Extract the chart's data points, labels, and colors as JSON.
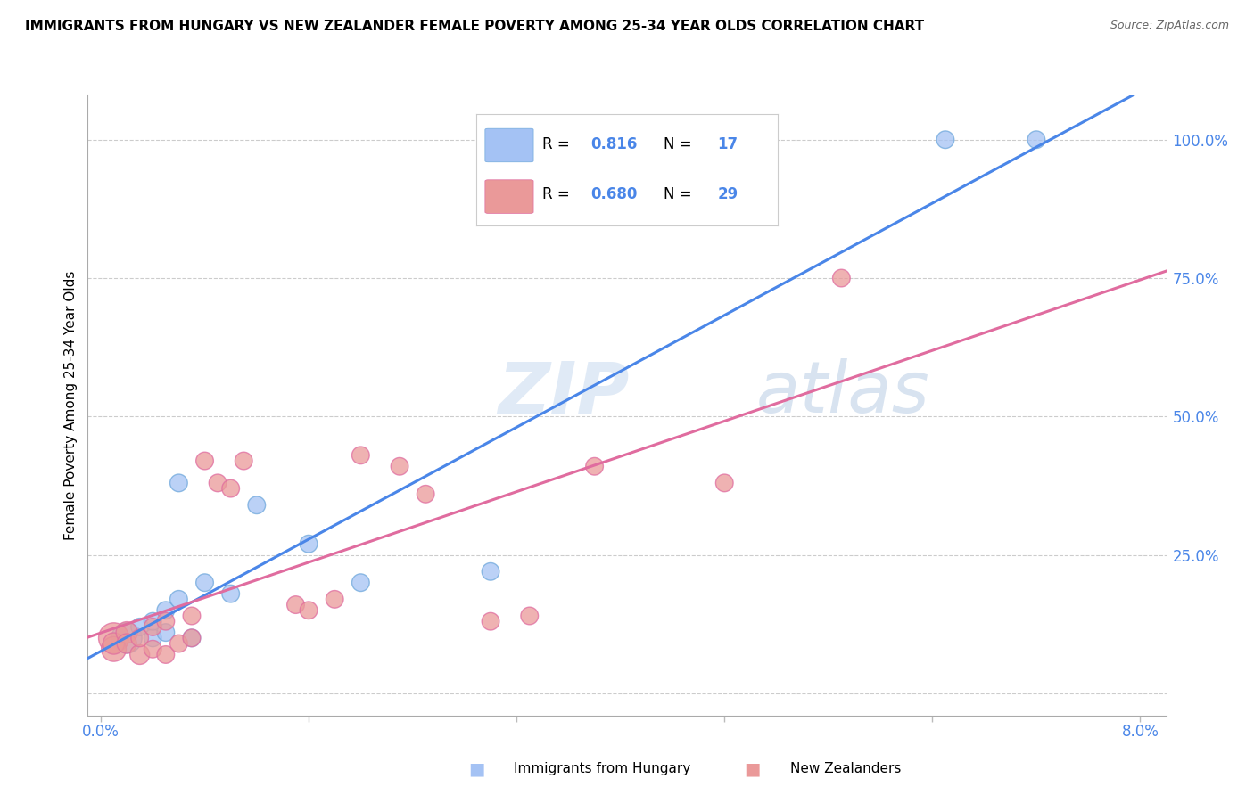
{
  "title": "IMMIGRANTS FROM HUNGARY VS NEW ZEALANDER FEMALE POVERTY AMONG 25-34 YEAR OLDS CORRELATION CHART",
  "source": "Source: ZipAtlas.com",
  "ylabel": "Female Poverty Among 25-34 Year Olds",
  "right_yticks": [
    0.0,
    0.25,
    0.5,
    0.75,
    1.0
  ],
  "right_yticklabels": [
    "",
    "25.0%",
    "50.0%",
    "75.0%",
    "100.0%"
  ],
  "watermark_zip": "ZIP",
  "watermark_atlas": "atlas",
  "legend_label_blue": "Immigrants from Hungary",
  "legend_label_pink": "New Zealanders",
  "blue_color": "#a4c2f4",
  "pink_color": "#ea9999",
  "blue_edge_color": "#6fa8dc",
  "pink_edge_color": "#e06c9f",
  "blue_line_color": "#4a86e8",
  "pink_line_color": "#e06c9f",
  "axis_label_color": "#4a86e8",
  "blue_points_x": [
    0.002,
    0.003,
    0.004,
    0.004,
    0.005,
    0.005,
    0.006,
    0.006,
    0.007,
    0.008,
    0.01,
    0.012,
    0.016,
    0.02,
    0.03,
    0.065,
    0.072
  ],
  "blue_points_y": [
    0.1,
    0.12,
    0.1,
    0.13,
    0.11,
    0.15,
    0.38,
    0.17,
    0.1,
    0.2,
    0.18,
    0.34,
    0.27,
    0.2,
    0.22,
    1.0,
    1.0
  ],
  "pink_points_x": [
    0.001,
    0.001,
    0.001,
    0.002,
    0.002,
    0.003,
    0.003,
    0.004,
    0.004,
    0.005,
    0.005,
    0.006,
    0.007,
    0.007,
    0.008,
    0.009,
    0.01,
    0.011,
    0.015,
    0.016,
    0.018,
    0.02,
    0.023,
    0.025,
    0.03,
    0.033,
    0.038,
    0.048,
    0.057
  ],
  "pink_points_y": [
    0.1,
    0.08,
    0.09,
    0.11,
    0.09,
    0.07,
    0.1,
    0.08,
    0.12,
    0.07,
    0.13,
    0.09,
    0.1,
    0.14,
    0.42,
    0.38,
    0.37,
    0.42,
    0.16,
    0.15,
    0.17,
    0.43,
    0.41,
    0.36,
    0.13,
    0.14,
    0.41,
    0.38,
    0.75
  ],
  "blue_sizes": [
    600,
    200,
    200,
    200,
    200,
    200,
    200,
    200,
    200,
    200,
    200,
    200,
    200,
    200,
    200,
    200,
    200
  ],
  "pink_sizes": [
    600,
    400,
    300,
    300,
    250,
    250,
    200,
    200,
    200,
    200,
    200,
    200,
    200,
    200,
    200,
    200,
    200,
    200,
    200,
    200,
    200,
    200,
    200,
    200,
    200,
    200,
    200,
    200,
    200
  ],
  "xlim": [
    -0.001,
    0.082
  ],
  "ylim": [
    -0.04,
    1.08
  ],
  "xticks": [
    0.0,
    0.016,
    0.032,
    0.048,
    0.064,
    0.08
  ]
}
